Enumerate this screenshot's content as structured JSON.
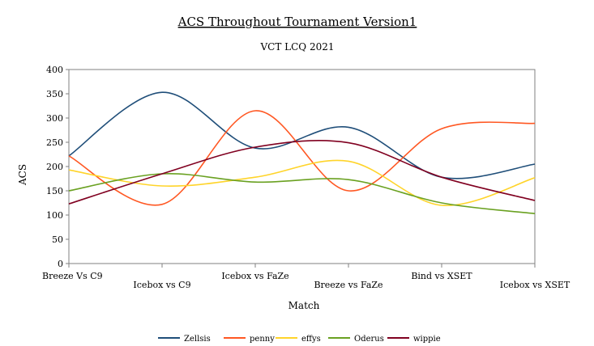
{
  "chart_data": {
    "type": "line",
    "title": "ACS Throughout Tournament Version1",
    "subtitle": "VCT LCQ 2021",
    "xlabel": "Match",
    "ylabel": "ACS",
    "categories": [
      "Breeze Vs C9",
      "Icebox vs C9",
      "Icebox vs FaZe",
      "Breeze vs FaZe",
      "Bind vs XSET",
      "Icebox vs XSET"
    ],
    "ylim": [
      0,
      400
    ],
    "yticks": [
      0,
      50,
      100,
      150,
      200,
      250,
      300,
      350,
      400
    ],
    "smooth": true,
    "grid": false,
    "legend_position": "bottom",
    "series": [
      {
        "name": "Zellsis",
        "color": "#1f4e79",
        "values": [
          222,
          353,
          238,
          281,
          178,
          205
        ]
      },
      {
        "name": "penny",
        "color": "#ff5722",
        "values": [
          222,
          122,
          315,
          150,
          278,
          289
        ]
      },
      {
        "name": "effys",
        "color": "#ffd42a",
        "values": [
          193,
          160,
          178,
          211,
          120,
          177
        ]
      },
      {
        "name": "Oderus",
        "color": "#6aa121",
        "values": [
          150,
          185,
          168,
          173,
          125,
          103
        ]
      },
      {
        "name": "wippie",
        "color": "#800020",
        "values": [
          123,
          185,
          240,
          249,
          178,
          130
        ]
      }
    ]
  }
}
